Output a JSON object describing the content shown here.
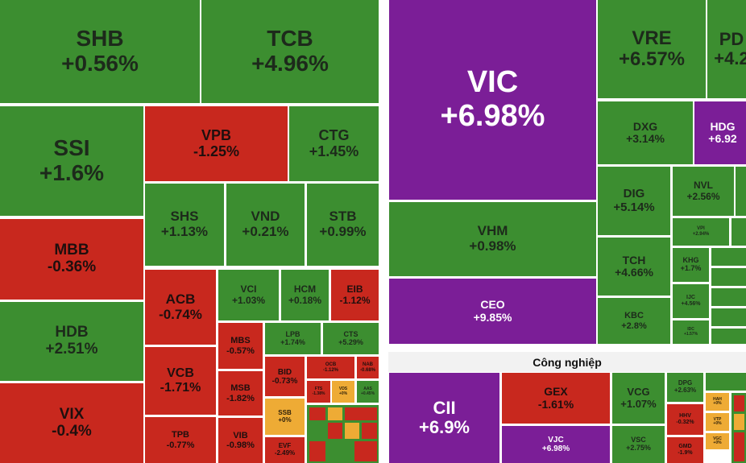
{
  "sectors": [
    {
      "tiles": [
        {
          "symbol": "SHB",
          "change": "+0.56%"
        },
        {
          "symbol": "TCB",
          "change": "+4.96%"
        },
        {
          "symbol": "SSI",
          "change": "+1.6%"
        },
        {
          "symbol": "VPB",
          "change": "-1.25%"
        },
        {
          "symbol": "CTG",
          "change": "+1.45%"
        },
        {
          "symbol": "SHS",
          "change": "+1.13%"
        },
        {
          "symbol": "VND",
          "change": "+0.21%"
        },
        {
          "symbol": "STB",
          "change": "+0.99%"
        },
        {
          "symbol": "MBB",
          "change": "-0.36%"
        },
        {
          "symbol": "HDB",
          "change": "+2.51%"
        },
        {
          "symbol": "VIX",
          "change": "-0.4%"
        },
        {
          "symbol": "ACB",
          "change": "-0.74%"
        },
        {
          "symbol": "VCB",
          "change": "-1.71%"
        },
        {
          "symbol": "TPB",
          "change": "-0.77%"
        },
        {
          "symbol": "VCI",
          "change": "+1.03%"
        },
        {
          "symbol": "HCM",
          "change": "+0.18%"
        },
        {
          "symbol": "EIB",
          "change": "-1.12%"
        },
        {
          "symbol": "MBS",
          "change": "-0.57%"
        },
        {
          "symbol": "MSB",
          "change": "-1.82%"
        },
        {
          "symbol": "VIB",
          "change": "-0.98%"
        },
        {
          "symbol": "LPB",
          "change": "+1.74%"
        },
        {
          "symbol": "CTS",
          "change": "+5.29%"
        },
        {
          "symbol": "BID",
          "change": "-0.73%"
        },
        {
          "symbol": "OCB",
          "change": "-1.12%"
        },
        {
          "symbol": "NAB",
          "change": "-0.68%"
        },
        {
          "symbol": "FTS",
          "change": "-1.38%"
        },
        {
          "symbol": "VDS",
          "change": "+0%"
        },
        {
          "symbol": "AAS",
          "change": "+0.45%"
        },
        {
          "symbol": "SSB",
          "change": "+0%"
        },
        {
          "symbol": "EVF",
          "change": "-2.49%"
        }
      ]
    },
    {
      "tiles": [
        {
          "symbol": "VIC",
          "change": "+6.98%"
        },
        {
          "symbol": "VRE",
          "change": "+6.57%"
        },
        {
          "symbol": "PD",
          "change": "+4.2"
        },
        {
          "symbol": "DXG",
          "change": "+3.14%"
        },
        {
          "symbol": "HDG",
          "change": "+6.92"
        },
        {
          "symbol": "DIG",
          "change": "+5.14%"
        },
        {
          "symbol": "NVL",
          "change": "+2.56%"
        },
        {
          "symbol": "VPI",
          "change": "+2.94%"
        },
        {
          "symbol": "VHM",
          "change": "+0.98%"
        },
        {
          "symbol": "CEO",
          "change": "+9.85%"
        },
        {
          "symbol": "TCH",
          "change": "+4.66%"
        },
        {
          "symbol": "KBC",
          "change": "+2.8%"
        },
        {
          "symbol": "KHG",
          "change": "+1.7%"
        },
        {
          "symbol": "IJC",
          "change": "+4.56%"
        },
        {
          "symbol": "IDC",
          "change": "+1.57%"
        }
      ]
    },
    {
      "title": "Công nghiệp",
      "tiles": [
        {
          "symbol": "CII",
          "change": "+6.9%"
        },
        {
          "symbol": "GEX",
          "change": "-1.61%"
        },
        {
          "symbol": "VJC",
          "change": "+6.98%"
        },
        {
          "symbol": "VCG",
          "change": "+1.07%"
        },
        {
          "symbol": "VSC",
          "change": "+2.75%"
        },
        {
          "symbol": "DPG",
          "change": "+2.63%"
        },
        {
          "symbol": "HHV",
          "change": "-0.32%"
        },
        {
          "symbol": "GMD",
          "change": "-1.9%"
        },
        {
          "symbol": "HAH",
          "change": "+0%"
        },
        {
          "symbol": "VTP",
          "change": "+0%"
        },
        {
          "symbol": "VGC",
          "change": "+0%"
        }
      ]
    }
  ]
}
